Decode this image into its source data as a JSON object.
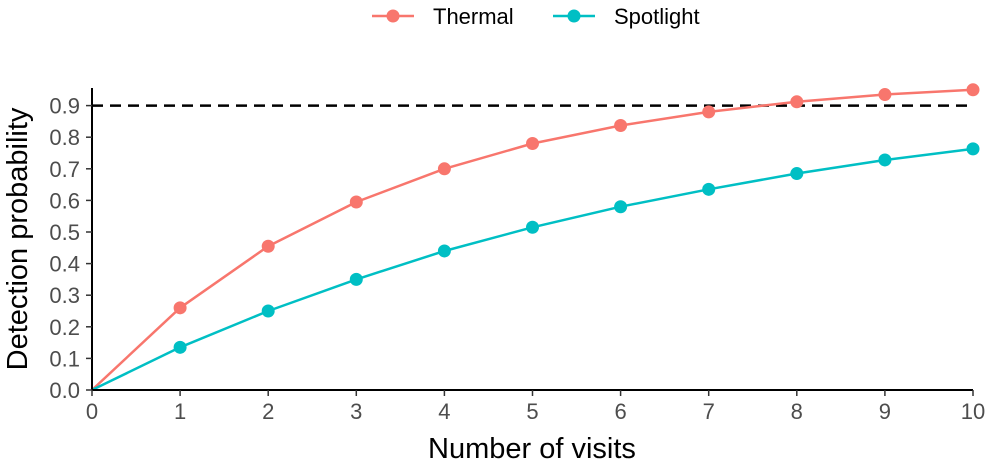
{
  "chart_data": {
    "type": "line",
    "xlabel": "Number of visits",
    "ylabel": "Detection probability",
    "xlim": [
      0,
      10
    ],
    "ylim": [
      0,
      0.95
    ],
    "x_ticks": [
      0,
      1,
      2,
      3,
      4,
      5,
      6,
      7,
      8,
      9,
      10
    ],
    "y_ticks": [
      0.0,
      0.1,
      0.2,
      0.3,
      0.4,
      0.5,
      0.6,
      0.7,
      0.8,
      0.9
    ],
    "y_tick_labels": [
      "0.0",
      "0.1",
      "0.2",
      "0.3",
      "0.4",
      "0.5",
      "0.6",
      "0.7",
      "0.8",
      "0.9"
    ],
    "x_tick_labels": [
      "0",
      "1",
      "2",
      "3",
      "4",
      "5",
      "6",
      "7",
      "8",
      "9",
      "10"
    ],
    "grid": false,
    "legend_position": "top",
    "reference_line": {
      "y": 0.9,
      "style": "dashed",
      "color": "#000000"
    },
    "series": [
      {
        "name": "Thermal",
        "color": "#F8766D",
        "x": [
          0,
          1,
          2,
          3,
          4,
          5,
          6,
          7,
          8,
          9,
          10
        ],
        "values": [
          0.0,
          0.26,
          0.455,
          0.595,
          0.7,
          0.78,
          0.837,
          0.88,
          0.912,
          0.935,
          0.95
        ]
      },
      {
        "name": "Spotlight",
        "color": "#00BFC4",
        "x": [
          0,
          1,
          2,
          3,
          4,
          5,
          6,
          7,
          8,
          9,
          10
        ],
        "values": [
          0.0,
          0.135,
          0.25,
          0.35,
          0.44,
          0.515,
          0.58,
          0.635,
          0.685,
          0.728,
          0.763
        ]
      }
    ]
  }
}
